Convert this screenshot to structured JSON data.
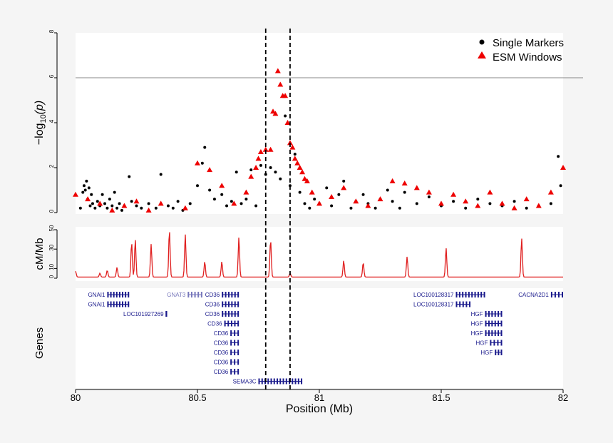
{
  "chart_data": {
    "type": "scatter",
    "title": "",
    "xlabel": "Position (Mb)",
    "xlim": [
      80,
      82
    ],
    "x_ticks": [
      "80",
      "80.5",
      "81",
      "81.5",
      "82"
    ],
    "x_tick_values": [
      80,
      80.5,
      81,
      81.5,
      82
    ],
    "top_panel": {
      "ylabel": "−log10(p)",
      "ylabel_main": "−log",
      "ylabel_sub": "10",
      "ylabel_var": "(p)",
      "ylim": [
        0,
        8
      ],
      "y_ticks": [
        "0",
        "2",
        "4",
        "6",
        "8"
      ],
      "y_tick_values": [
        0,
        2,
        4,
        6,
        8
      ],
      "threshold": 6,
      "threshold_color": "#888888",
      "series": [
        {
          "name": "Single Markers",
          "color": "#000000",
          "marker": "circle",
          "x": [
            80.02,
            80.03,
            80.035,
            80.04,
            80.045,
            80.05,
            80.055,
            80.06,
            80.065,
            80.07,
            80.08,
            80.09,
            80.1,
            80.11,
            80.12,
            80.13,
            80.14,
            80.15,
            80.16,
            80.17,
            80.18,
            80.19,
            80.2,
            80.22,
            80.23,
            80.25,
            80.27,
            80.3,
            80.33,
            80.35,
            80.38,
            80.4,
            80.42,
            80.44,
            80.47,
            80.5,
            80.52,
            80.53,
            80.55,
            80.57,
            80.6,
            80.62,
            80.64,
            80.66,
            80.68,
            80.7,
            80.72,
            80.74,
            80.76,
            80.78,
            80.8,
            80.82,
            80.84,
            80.86,
            80.88,
            80.9,
            80.92,
            80.94,
            80.96,
            80.98,
            81.0,
            81.03,
            81.05,
            81.08,
            81.1,
            81.13,
            81.15,
            81.18,
            81.2,
            81.23,
            81.25,
            81.28,
            81.3,
            81.33,
            81.35,
            81.4,
            81.45,
            81.5,
            81.55,
            81.6,
            81.65,
            81.7,
            81.75,
            81.8,
            81.85,
            81.9,
            81.95,
            81.98,
            81.99
          ],
          "y": [
            0.2,
            0.9,
            1.2,
            1.0,
            1.4,
            0.6,
            1.1,
            0.3,
            0.8,
            0.4,
            0.2,
            0.5,
            0.3,
            0.8,
            0.4,
            0.2,
            0.6,
            0.3,
            0.9,
            0.2,
            0.4,
            0.1,
            0.3,
            1.6,
            0.5,
            0.3,
            0.2,
            0.4,
            0.2,
            1.7,
            0.3,
            0.2,
            0.5,
            0.1,
            0.4,
            1.2,
            2.2,
            2.9,
            1.0,
            0.6,
            0.8,
            0.3,
            0.5,
            1.8,
            0.4,
            0.6,
            1.9,
            0.3,
            2.1,
            1.7,
            2.0,
            1.8,
            1.5,
            4.3,
            1.2,
            2.6,
            0.9,
            0.4,
            0.2,
            0.6,
            0.4,
            1.1,
            0.3,
            0.8,
            1.4,
            0.2,
            0.5,
            0.8,
            0.4,
            0.2,
            0.6,
            1.0,
            0.5,
            0.2,
            0.9,
            0.4,
            0.7,
            0.3,
            0.5,
            0.2,
            0.6,
            0.4,
            0.3,
            0.5,
            0.2,
            0.3,
            0.4,
            2.5,
            1.2
          ]
        },
        {
          "name": "ESM Windows",
          "color": "#ee0000",
          "marker": "triangle",
          "x": [
            80.0,
            80.05,
            80.1,
            80.15,
            80.2,
            80.25,
            80.3,
            80.35,
            80.45,
            80.5,
            80.55,
            80.6,
            80.65,
            80.7,
            80.72,
            80.74,
            80.75,
            80.76,
            80.78,
            80.8,
            80.81,
            80.82,
            80.83,
            80.84,
            80.85,
            80.86,
            80.87,
            80.88,
            80.89,
            80.9,
            80.91,
            80.92,
            80.93,
            80.94,
            80.95,
            80.97,
            81.0,
            81.05,
            81.1,
            81.15,
            81.2,
            81.25,
            81.3,
            81.35,
            81.4,
            81.45,
            81.5,
            81.55,
            81.6,
            81.65,
            81.7,
            81.75,
            81.8,
            81.85,
            81.9,
            81.95,
            82.0
          ],
          "y": [
            0.8,
            0.6,
            0.4,
            0.1,
            0.3,
            0.5,
            0.1,
            0.4,
            0.2,
            2.2,
            1.9,
            1.2,
            0.4,
            0.9,
            1.6,
            2.0,
            2.4,
            2.7,
            2.8,
            2.8,
            4.5,
            4.4,
            6.3,
            5.7,
            5.2,
            5.2,
            4.0,
            3.1,
            2.9,
            2.4,
            2.2,
            2.0,
            1.8,
            1.5,
            1.4,
            0.9,
            0.4,
            0.7,
            1.1,
            0.5,
            0.3,
            0.6,
            1.4,
            1.3,
            1.1,
            0.9,
            0.4,
            0.8,
            0.5,
            0.3,
            0.9,
            0.4,
            0.2,
            0.6,
            0.3,
            0.9,
            2.0
          ]
        }
      ],
      "legend_position": "top-right"
    },
    "middle_panel": {
      "ylabel": "cM/Mb",
      "ylim": [
        0,
        50
      ],
      "y_ticks": [
        "0",
        "10",
        "30",
        "50"
      ],
      "y_tick_values": [
        0,
        10,
        30,
        50
      ],
      "series": [
        {
          "name": "",
          "color": "#e02020",
          "type": "line",
          "peaks_x": [
            80.0,
            80.1,
            80.13,
            80.17,
            80.23,
            80.245,
            80.31,
            80.385,
            80.45,
            80.53,
            80.6,
            80.67,
            80.8,
            80.88,
            81.1,
            81.18,
            81.36,
            81.52,
            81.83
          ],
          "peaks_y": [
            6,
            4,
            7,
            10,
            36,
            39,
            34,
            49,
            44,
            16,
            16,
            41,
            39,
            4,
            17,
            15,
            21,
            30,
            40
          ]
        }
      ]
    },
    "bottom_panel": {
      "ylabel": "Genes",
      "genes": [
        {
          "name": "GNAI1",
          "start": 80.13,
          "end": 80.22,
          "row": 0,
          "color": "#1a1a8c"
        },
        {
          "name": "GNAI1",
          "start": 80.13,
          "end": 80.22,
          "row": 1,
          "color": "#1a1a8c"
        },
        {
          "name": "LOC101927269",
          "start": 80.37,
          "end": 80.375,
          "row": 2,
          "color": "#1a1a8c"
        },
        {
          "name": "GNAT3",
          "start": 80.46,
          "end": 80.52,
          "row": 0,
          "color": "#7777bb"
        },
        {
          "name": "CD36",
          "start": 80.6,
          "end": 80.67,
          "row": 0,
          "color": "#1a1a8c"
        },
        {
          "name": "CD36",
          "start": 80.6,
          "end": 80.67,
          "row": 1,
          "color": "#1a1a8c"
        },
        {
          "name": "CD36",
          "start": 80.6,
          "end": 80.67,
          "row": 2,
          "color": "#1a1a8c"
        },
        {
          "name": "CD36",
          "start": 80.61,
          "end": 80.67,
          "row": 3,
          "color": "#1a1a8c"
        },
        {
          "name": "CD36",
          "start": 80.635,
          "end": 80.67,
          "row": 4,
          "color": "#1a1a8c"
        },
        {
          "name": "CD36",
          "start": 80.635,
          "end": 80.67,
          "row": 5,
          "color": "#1a1a8c"
        },
        {
          "name": "CD36",
          "start": 80.635,
          "end": 80.67,
          "row": 6,
          "color": "#1a1a8c"
        },
        {
          "name": "CD36",
          "start": 80.635,
          "end": 80.67,
          "row": 7,
          "color": "#1a1a8c"
        },
        {
          "name": "CD36",
          "start": 80.635,
          "end": 80.67,
          "row": 8,
          "color": "#1a1a8c"
        },
        {
          "name": "SEMA3C",
          "start": 80.75,
          "end": 80.93,
          "row": 9,
          "color": "#1a1a8c"
        },
        {
          "name": "LOC100128317",
          "start": 81.56,
          "end": 81.68,
          "row": 0,
          "color": "#1a1a8c"
        },
        {
          "name": "LOC100128317",
          "start": 81.56,
          "end": 81.62,
          "row": 1,
          "color": "#1a1a8c"
        },
        {
          "name": "HGF",
          "start": 81.68,
          "end": 81.75,
          "row": 2,
          "color": "#1a1a8c"
        },
        {
          "name": "HGF",
          "start": 81.68,
          "end": 81.75,
          "row": 3,
          "color": "#1a1a8c"
        },
        {
          "name": "HGF",
          "start": 81.68,
          "end": 81.75,
          "row": 4,
          "color": "#1a1a8c"
        },
        {
          "name": "HGF",
          "start": 81.7,
          "end": 81.75,
          "row": 5,
          "color": "#1a1a8c"
        },
        {
          "name": "HGF",
          "start": 81.72,
          "end": 81.75,
          "row": 6,
          "color": "#1a1a8c"
        },
        {
          "name": "CACNA2D1",
          "start": 81.95,
          "end": 82.0,
          "row": 0,
          "color": "#1a1a8c"
        }
      ]
    },
    "vlines": [
      80.78,
      80.88
    ],
    "vline_style": "dashed"
  }
}
